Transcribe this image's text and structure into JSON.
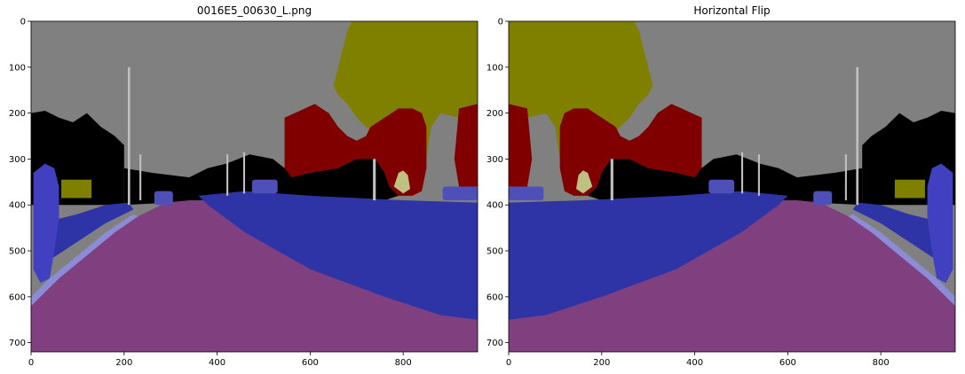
{
  "figure": {
    "panels": [
      {
        "title": "0016E5_00630_L.png",
        "flipped": false
      },
      {
        "title": "Horizontal Flip",
        "flipped": true
      }
    ],
    "image_extent": {
      "x": [
        0,
        960
      ],
      "y": [
        0,
        720
      ]
    },
    "x_ticks": [
      "0",
      "200",
      "400",
      "600",
      "800"
    ],
    "y_ticks": [
      "0",
      "100",
      "200",
      "300",
      "400",
      "500",
      "600",
      "700"
    ],
    "x_tick_values": [
      0,
      200,
      400,
      600,
      800
    ],
    "y_tick_values": [
      0,
      100,
      200,
      300,
      400,
      500,
      600,
      700
    ]
  },
  "colors": {
    "sky": "#808080",
    "tree": "#808000",
    "building": "#800000",
    "road": "#804080",
    "sidewalk": "#2e33a6",
    "car": "#4f4fb9",
    "pedestrian": "#4040c0",
    "void": "#000000",
    "lane_edge": "#8c8cd6",
    "sign": "#c0c080",
    "pole": "#c0c0c0"
  }
}
